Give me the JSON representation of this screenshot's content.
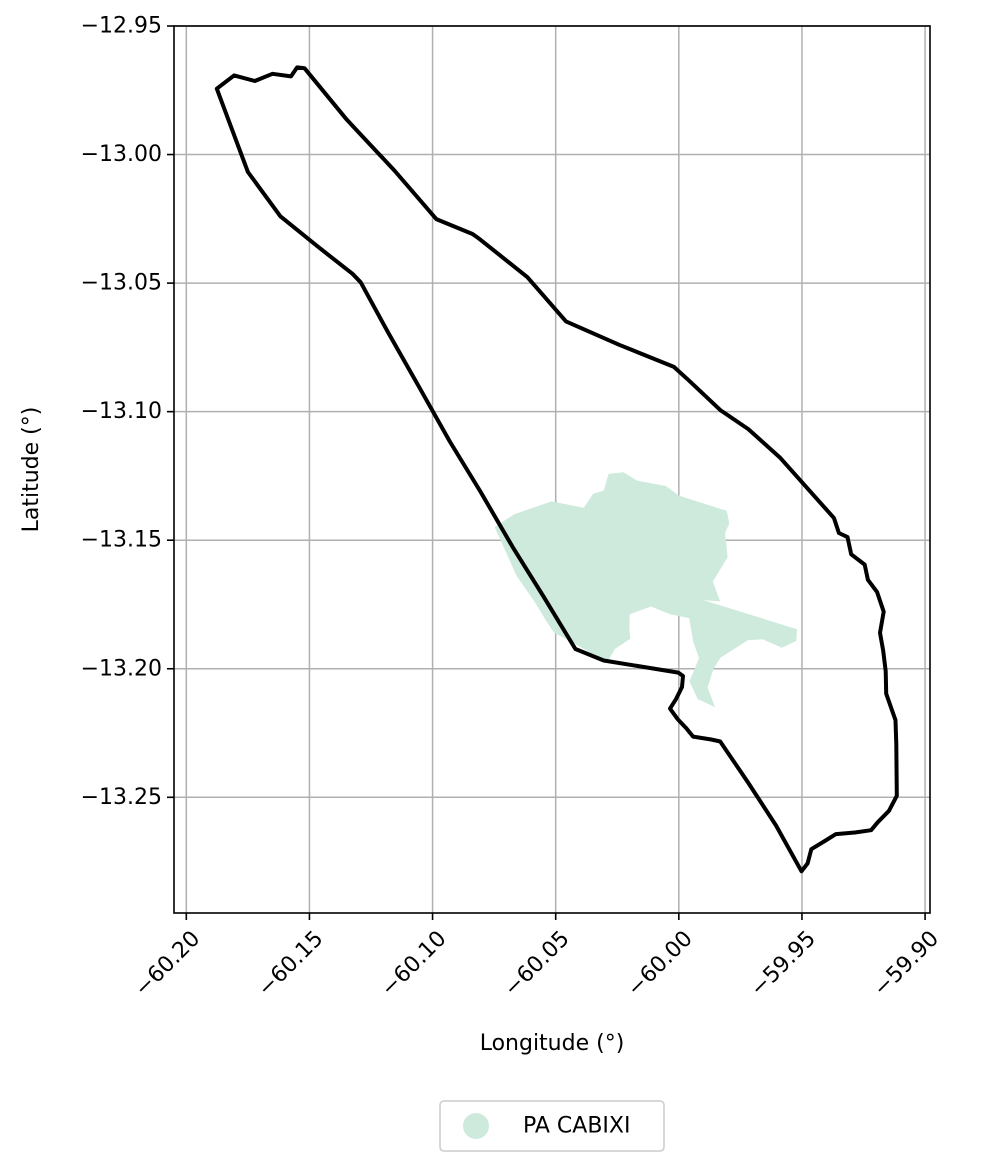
{
  "chart_data": {
    "type": "map",
    "xlabel": "Longitude (°)",
    "ylabel": "Latitude (°)",
    "xlim": [
      -60.205,
      -59.898
    ],
    "ylim": [
      -13.295,
      -12.95
    ],
    "xticks": [
      -60.2,
      -60.15,
      -60.1,
      -60.05,
      -60.0,
      -59.95,
      -59.9
    ],
    "xtick_labels": [
      "−60.20",
      "−60.15",
      "−60.10",
      "−60.05",
      "−60.00",
      "−59.95",
      "−59.90"
    ],
    "yticks": [
      -12.95,
      -13.0,
      -13.05,
      -13.1,
      -13.15,
      -13.2,
      -13.25
    ],
    "ytick_labels": [
      "−12.95",
      "−13.00",
      "−13.05",
      "−13.10",
      "−13.15",
      "−13.20",
      "−13.25"
    ],
    "grid": true,
    "legend": {
      "placement": "bottom-center",
      "entries": [
        {
          "label": "PA CABIXI",
          "color": "#cdeadc"
        }
      ]
    },
    "layers": [
      {
        "name": "PA CABIXI",
        "kind": "filled-polygon",
        "color": "#cdeadc",
        "coords": [
          [
            -60.0386,
            -13.1374
          ],
          [
            -60.0348,
            -13.1319
          ],
          [
            -60.0305,
            -13.1307
          ],
          [
            -60.0285,
            -13.1242
          ],
          [
            -60.0225,
            -13.1236
          ],
          [
            -60.017,
            -13.1268
          ],
          [
            -60.0053,
            -13.1289
          ],
          [
            -59.9998,
            -13.1327
          ],
          [
            -59.9805,
            -13.1386
          ],
          [
            -59.9795,
            -13.1435
          ],
          [
            -59.9812,
            -13.1471
          ],
          [
            -59.9802,
            -13.1566
          ],
          [
            -59.9862,
            -13.1661
          ],
          [
            -59.9832,
            -13.1738
          ],
          [
            -59.99,
            -13.1733
          ],
          [
            -59.952,
            -13.1846
          ],
          [
            -59.9523,
            -13.1892
          ],
          [
            -59.9582,
            -13.1918
          ],
          [
            -59.966,
            -13.1885
          ],
          [
            -59.972,
            -13.1889
          ],
          [
            -59.9831,
            -13.1957
          ],
          [
            -59.986,
            -13.2002
          ],
          [
            -59.9883,
            -13.2073
          ],
          [
            -59.9853,
            -13.2149
          ],
          [
            -59.9923,
            -13.2118
          ],
          [
            -59.9957,
            -13.2049
          ],
          [
            -59.9918,
            -13.1959
          ],
          [
            -59.9942,
            -13.1893
          ],
          [
            -59.9958,
            -13.1803
          ],
          [
            -60.0036,
            -13.1788
          ],
          [
            -60.0113,
            -13.1758
          ],
          [
            -60.0199,
            -13.1788
          ],
          [
            -60.0201,
            -13.1838
          ],
          [
            -60.0197,
            -13.1883
          ],
          [
            -60.026,
            -13.1923
          ],
          [
            -60.0291,
            -13.1976
          ],
          [
            -60.0431,
            -13.1898
          ],
          [
            -60.0507,
            -13.186
          ],
          [
            -60.054,
            -13.1811
          ],
          [
            -60.0584,
            -13.1742
          ],
          [
            -60.0659,
            -13.1638
          ],
          [
            -60.0702,
            -13.1547
          ],
          [
            -60.0748,
            -13.1449
          ],
          [
            -60.0668,
            -13.1399
          ],
          [
            -60.0517,
            -13.1349
          ],
          [
            -60.0386,
            -13.1374
          ]
        ]
      },
      {
        "name": "Boundary",
        "kind": "outline",
        "color": "#000000",
        "coords": [
          [
            -60.1876,
            -12.9744
          ],
          [
            -60.1806,
            -12.9692
          ],
          [
            -60.1722,
            -12.9714
          ],
          [
            -60.165,
            -12.9686
          ],
          [
            -60.1575,
            -12.9696
          ],
          [
            -60.155,
            -12.9661
          ],
          [
            -60.152,
            -12.9664
          ],
          [
            -60.1348,
            -12.9865
          ],
          [
            -60.1155,
            -13.0062
          ],
          [
            -60.0985,
            -13.0251
          ],
          [
            -60.0838,
            -13.0309
          ],
          [
            -60.081,
            -13.0328
          ],
          [
            -60.0615,
            -13.0477
          ],
          [
            -60.0458,
            -13.0649
          ],
          [
            -60.0242,
            -13.074
          ],
          [
            -60.002,
            -13.0826
          ],
          [
            -59.996,
            -13.0878
          ],
          [
            -59.983,
            -13.0995
          ],
          [
            -59.9718,
            -13.1068
          ],
          [
            -59.9588,
            -13.118
          ],
          [
            -59.937,
            -13.1414
          ],
          [
            -59.935,
            -13.1472
          ],
          [
            -59.9315,
            -13.1488
          ],
          [
            -59.93,
            -13.1555
          ],
          [
            -59.9245,
            -13.1595
          ],
          [
            -59.9232,
            -13.1654
          ],
          [
            -59.9195,
            -13.1702
          ],
          [
            -59.9168,
            -13.1778
          ],
          [
            -59.9183,
            -13.186
          ],
          [
            -59.917,
            -13.193
          ],
          [
            -59.916,
            -13.201
          ],
          [
            -59.9158,
            -13.2097
          ],
          [
            -59.912,
            -13.22
          ],
          [
            -59.9117,
            -13.2294
          ],
          [
            -59.9115,
            -13.2494
          ],
          [
            -59.9147,
            -13.2553
          ],
          [
            -59.9192,
            -13.2597
          ],
          [
            -59.9219,
            -13.2628
          ],
          [
            -59.9285,
            -13.2637
          ],
          [
            -59.9362,
            -13.2643
          ],
          [
            -59.9404,
            -13.2668
          ],
          [
            -59.9462,
            -13.2702
          ],
          [
            -59.9477,
            -13.2757
          ],
          [
            -59.9502,
            -13.2788
          ],
          [
            -59.9605,
            -13.261
          ],
          [
            -59.972,
            -13.2441
          ],
          [
            -59.9832,
            -13.2283
          ],
          [
            -59.9868,
            -13.2275
          ],
          [
            -59.9942,
            -13.2264
          ],
          [
            -59.997,
            -13.2231
          ],
          [
            -60.0005,
            -13.2196
          ],
          [
            -60.0036,
            -13.2155
          ],
          [
            -60.0012,
            -13.2119
          ],
          [
            -59.9987,
            -13.2071
          ],
          [
            -59.9983,
            -13.2028
          ],
          [
            -60.0002,
            -13.2015
          ],
          [
            -60.0305,
            -13.1968
          ],
          [
            -60.042,
            -13.1923
          ],
          [
            -60.055,
            -13.1718
          ],
          [
            -60.0675,
            -13.1526
          ],
          [
            -60.0806,
            -13.131
          ],
          [
            -60.093,
            -13.1116
          ],
          [
            -60.106,
            -13.0895
          ],
          [
            -60.1183,
            -13.0688
          ],
          [
            -60.1292,
            -13.0497
          ],
          [
            -60.1325,
            -13.0464
          ],
          [
            -60.1466,
            -13.0358
          ],
          [
            -60.1618,
            -13.024
          ],
          [
            -60.175,
            -13.0068
          ],
          [
            -60.1876,
            -12.9744
          ]
        ]
      }
    ]
  }
}
